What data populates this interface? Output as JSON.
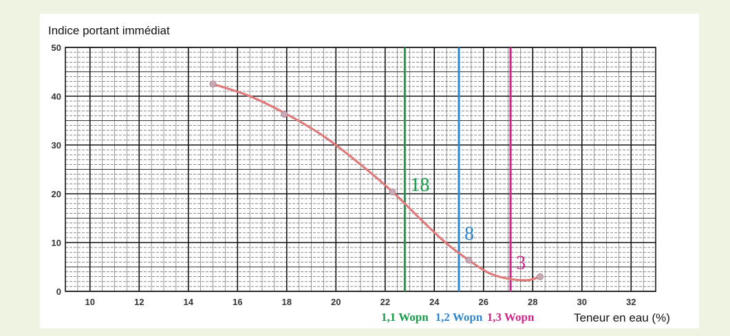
{
  "chart_data": {
    "type": "line",
    "ylabel": "Indice portant immédiat",
    "xlabel": "Teneur en eau (%)",
    "xlim": [
      9,
      33
    ],
    "ylim": [
      0,
      50
    ],
    "x_ticks": [
      10,
      12,
      14,
      16,
      18,
      20,
      22,
      24,
      26,
      28,
      30,
      32
    ],
    "y_ticks": [
      0,
      10,
      20,
      30,
      40,
      50
    ],
    "grid": true,
    "series": [
      {
        "color": "#e07a7a",
        "points": [
          [
            15.0,
            42.5
          ],
          [
            17.9,
            36.3
          ],
          [
            22.3,
            20.4
          ],
          [
            25.4,
            6.4
          ],
          [
            28.3,
            3.0
          ]
        ],
        "curve": [
          [
            15.0,
            42.5
          ],
          [
            16.5,
            40.0
          ],
          [
            18.0,
            36.3
          ],
          [
            19.5,
            31.8
          ],
          [
            21.0,
            26.0
          ],
          [
            22.3,
            20.4
          ],
          [
            23.5,
            14.5
          ],
          [
            24.5,
            9.8
          ],
          [
            25.4,
            6.4
          ],
          [
            26.2,
            3.8
          ],
          [
            27.0,
            2.6
          ],
          [
            27.8,
            2.3
          ],
          [
            28.3,
            3.0
          ]
        ]
      }
    ],
    "vertical_lines": [
      {
        "x": 22.8,
        "color": "#1a9a4a",
        "label": "1,1 Wopn",
        "annotation": "18",
        "annotation_y": 20
      },
      {
        "x": 25.0,
        "color": "#2e88d0",
        "label": "1,2 Wopn",
        "annotation": "8",
        "annotation_y": 10
      },
      {
        "x": 27.1,
        "color": "#d0278a",
        "label": "1,3 Wopn",
        "annotation": "3",
        "annotation_y": 4
      }
    ]
  }
}
